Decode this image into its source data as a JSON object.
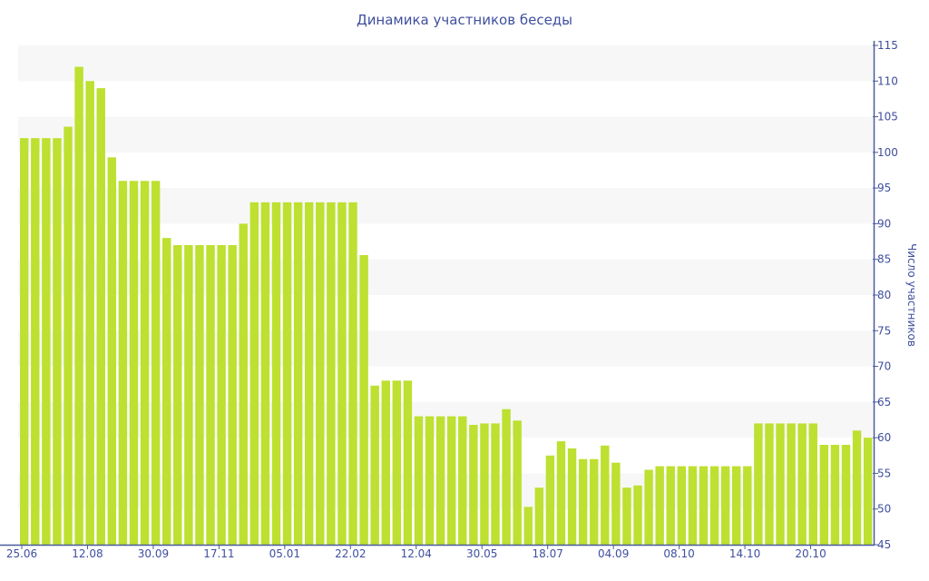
{
  "chart_data": {
    "type": "bar",
    "title": "Динамика участников беседы",
    "xlabel": "",
    "ylabel": "Число участников",
    "ylim": [
      45,
      115
    ],
    "yticks": [
      45,
      50,
      55,
      60,
      65,
      70,
      75,
      80,
      85,
      90,
      95,
      100,
      105,
      110,
      115
    ],
    "y_axis_position": "right",
    "grid": "alternating horizontal bands",
    "x_tick_labels": [
      "25.06",
      "12.08",
      "30.09",
      "17.11",
      "05.01",
      "22.02",
      "12.04",
      "30.05",
      "18.07",
      "04.09",
      "08.10",
      "14.10",
      "20.10"
    ],
    "x_tick_every_n_bars": 6,
    "values": [
      102,
      102,
      102,
      102,
      103.6,
      112,
      110,
      109,
      99.3,
      96,
      96,
      96,
      96,
      88,
      87,
      87,
      87,
      87,
      87,
      87,
      90,
      93,
      93,
      93,
      93,
      93,
      93,
      93,
      93,
      93,
      93,
      85.6,
      67.3,
      68,
      68,
      68,
      63,
      63,
      63,
      63,
      63,
      61.8,
      62,
      62,
      64,
      62.4,
      50.3,
      53,
      57.5,
      59.5,
      58.5,
      57,
      57,
      58.9,
      56.5,
      53,
      53.3,
      55.5,
      56,
      56,
      56,
      56,
      56,
      56,
      56,
      56,
      56,
      62,
      62,
      62,
      62,
      62,
      62,
      59,
      59,
      59,
      61,
      60
    ],
    "colors": {
      "bar": "#bde031",
      "axis": "#4a5a9f",
      "band": "#f7f7f7",
      "text": "#3f4f9f"
    }
  }
}
